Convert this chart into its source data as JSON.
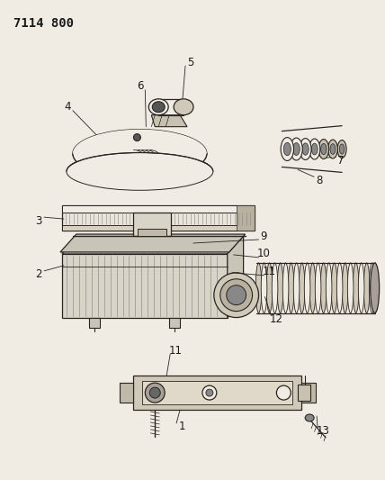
{
  "title": "7114 800",
  "bg_color": "#f0ece4",
  "line_color": "#2a2520",
  "label_color": "#1a1a1a",
  "label_fontsize": 8.5,
  "fig_width": 4.28,
  "fig_height": 5.33,
  "dpi": 100
}
